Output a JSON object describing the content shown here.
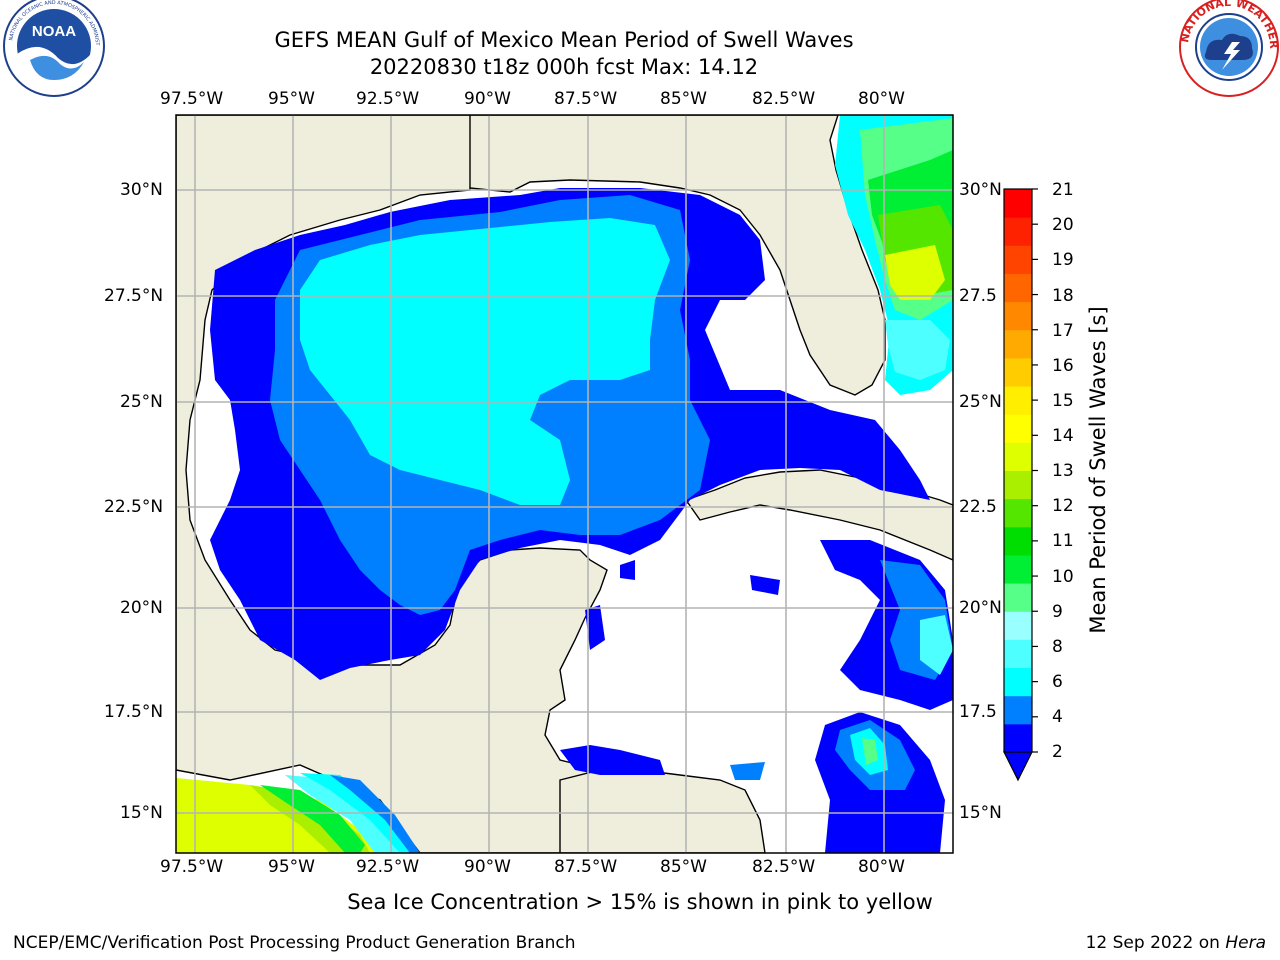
{
  "header": {
    "title": "GEFS MEAN Gulf of Mexico Mean Period of Swell Waves",
    "subtitle": "20220830 t18z 000h fcst   Max: 14.12"
  },
  "logos": {
    "noaa_text": "NOAA",
    "noaa_ring": "NATIONAL OCEANIC AND ATMOSPHERIC ADMINISTRATION · U.S. DEPARTMENT OF COMMERCE",
    "nws_ring": "NATIONAL WEATHER SERVICE"
  },
  "map": {
    "lon_labels": [
      "97.5°W",
      "95°W",
      "92.5°W",
      "90°W",
      "87.5°W",
      "85°W",
      "82.5°W",
      "80°W"
    ],
    "lat_labels_left": [
      "30°N",
      "27.5°N",
      "25°N",
      "22.5°N",
      "20°N",
      "17.5°N",
      "15°N"
    ],
    "lat_labels_right": [
      "30°N",
      "27.5",
      "25°N",
      "22.5",
      "20°N",
      "17.5",
      "15°N"
    ],
    "colors": {
      "land": "#efeddc",
      "ocean_none": "#ffffff",
      "grid": "#b4b4b4"
    }
  },
  "colorbar": {
    "label": "Mean Period of Swell Waves [s]",
    "ticks": [
      "21",
      "20",
      "19",
      "18",
      "17",
      "16",
      "15",
      "14",
      "13",
      "12",
      "11",
      "10",
      "9",
      "8",
      "6",
      "4",
      "2"
    ],
    "colors": [
      "#0000ff",
      "#007fff",
      "#00ffff",
      "#4dffff",
      "#99ffff",
      "#55ff88",
      "#00ee33",
      "#00dd00",
      "#55e600",
      "#aaee00",
      "#ddff00",
      "#ffff00",
      "#ffee00",
      "#ffcc00",
      "#ffaa00",
      "#ff8800",
      "#ff6600",
      "#ff4400",
      "#ff2200",
      "#ff0000"
    ]
  },
  "note": "Sea Ice Concentration > 15% is shown in pink to yellow",
  "footer": {
    "left": "NCEP/EMC/Verification Post Processing Product Generation Branch",
    "date": "12 Sep 2022 on ",
    "host": "Hera"
  }
}
